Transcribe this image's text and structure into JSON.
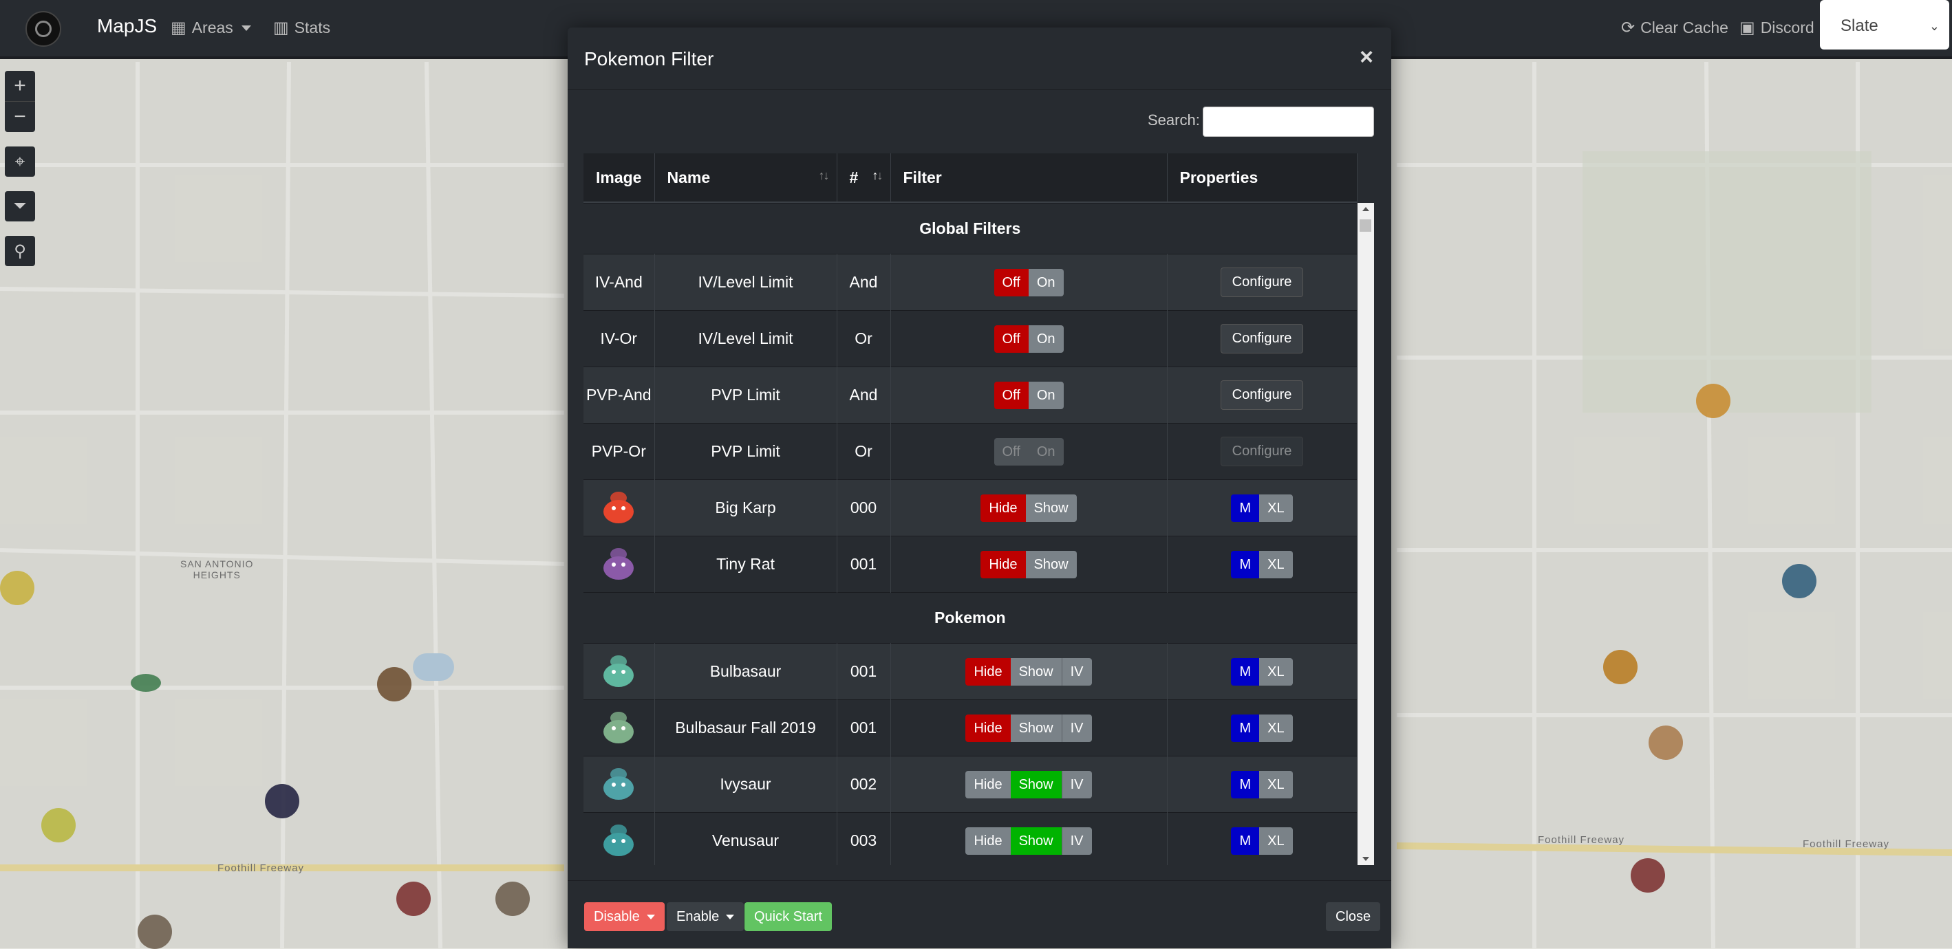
{
  "navbar": {
    "brand": "MapJS",
    "areas_label": "Areas",
    "stats_label": "Stats",
    "clear_cache_label": "Clear Cache",
    "discord_label": "Discord",
    "theme_select_value": "Slate"
  },
  "map": {
    "label_neighborhood": "SAN ANTONIO\nHEIGHTS",
    "label_freeway_left": "Foothill Freeway",
    "label_freeway_right": "Foothill Freeway",
    "label_freeway_right2": "Foothill Freeway"
  },
  "modal": {
    "title": "Pokemon Filter",
    "close_x": "×",
    "search_label": "Search:",
    "search_value": "",
    "columns": [
      "Image",
      "Name",
      "#",
      "Filter",
      "Properties"
    ],
    "sections": {
      "global": "Global Filters",
      "pokemon": "Pokemon"
    },
    "global_rows": [
      {
        "image": "IV-And",
        "name": "IV/Level Limit",
        "num": "And",
        "off": "Off",
        "on": "On",
        "action": "Configure",
        "disabled": false
      },
      {
        "image": "IV-Or",
        "name": "IV/Level Limit",
        "num": "Or",
        "off": "Off",
        "on": "On",
        "action": "Configure",
        "disabled": false
      },
      {
        "image": "PVP-And",
        "name": "PVP Limit",
        "num": "And",
        "off": "Off",
        "on": "On",
        "action": "Configure",
        "disabled": false
      },
      {
        "image": "PVP-Or",
        "name": "PVP Limit",
        "num": "Or",
        "off": "Off",
        "on": "On",
        "action": "Configure",
        "disabled": true
      }
    ],
    "special_rows": [
      {
        "name": "Big Karp",
        "num": "000",
        "hide": "Hide",
        "show": "Show",
        "m": "M",
        "xl": "XL",
        "color": "#e8452c"
      },
      {
        "name": "Tiny Rat",
        "num": "001",
        "hide": "Hide",
        "show": "Show",
        "m": "M",
        "xl": "XL",
        "color": "#8b5aa8"
      }
    ],
    "pokemon_rows": [
      {
        "name": "Bulbasaur",
        "num": "001",
        "hide": "Hide",
        "show": "Show",
        "iv": "IV",
        "state": "hide",
        "m": "M",
        "xl": "XL",
        "color": "#5fb8a0"
      },
      {
        "name": "Bulbasaur Fall 2019",
        "num": "001",
        "hide": "Hide",
        "show": "Show",
        "iv": "IV",
        "state": "hide",
        "m": "M",
        "xl": "XL",
        "color": "#7fb08a"
      },
      {
        "name": "Ivysaur",
        "num": "002",
        "hide": "Hide",
        "show": "Show",
        "iv": "IV",
        "state": "show",
        "m": "M",
        "xl": "XL",
        "color": "#4fa3a8"
      },
      {
        "name": "Venusaur",
        "num": "003",
        "hide": "Hide",
        "show": "Show",
        "iv": "IV",
        "state": "show",
        "m": "M",
        "xl": "XL",
        "color": "#3e9ea0"
      }
    ],
    "footer": {
      "disable_label": "Disable",
      "enable_label": "Enable",
      "quick_start_label": "Quick Start",
      "close_label": "Close"
    }
  },
  "colors": {
    "navbar_bg": "#272b30",
    "danger": "#bd0000",
    "success": "#00b300",
    "primary_m": "#0000c8",
    "disable_btn": "#ee5f5b",
    "quick_start_btn": "#62c462"
  }
}
